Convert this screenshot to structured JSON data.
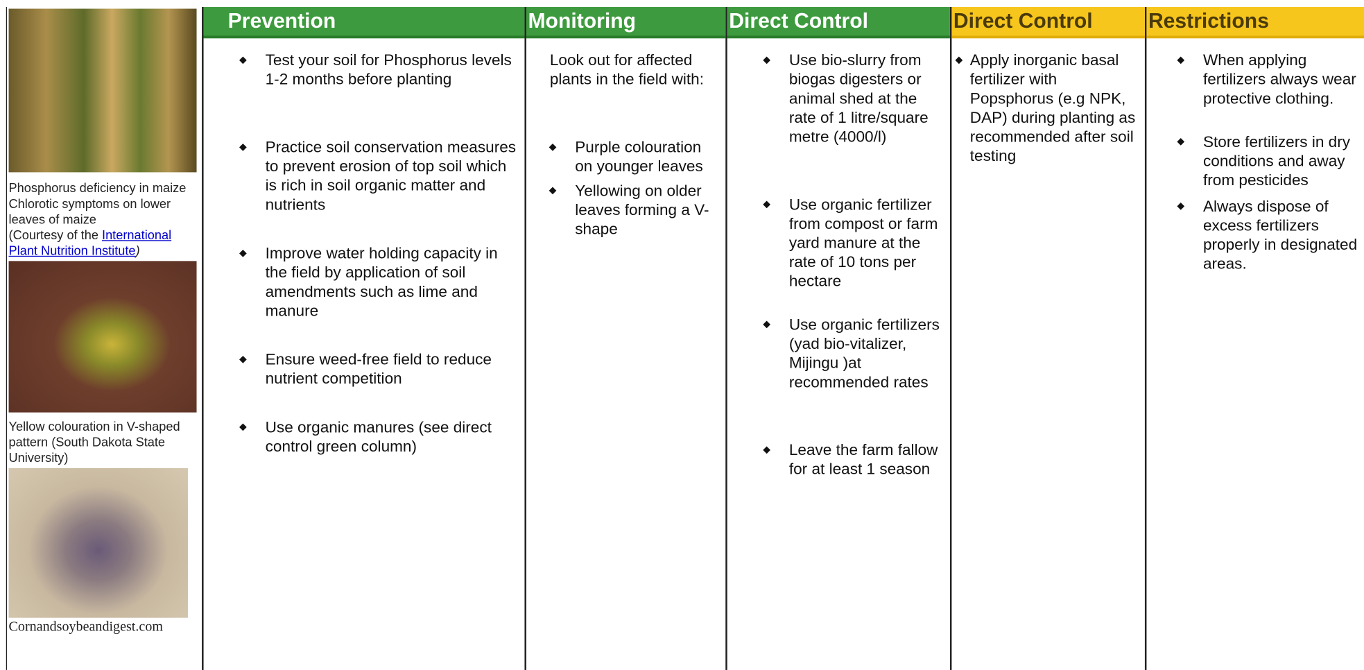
{
  "sidebar": {
    "captions": [
      [
        "Phosphorus deficiency in maize",
        "Chlorotic symptoms on lower",
        "leaves of maize"
      ],
      [
        "(Courtesy of the ",
        "International",
        "Plant Nutrition Institute",
        ")"
      ],
      "Yellow colouration in V-shaped pattern (South Dakota State University)",
      "Cornandsoybeandigest.com"
    ]
  },
  "columns": [
    {
      "header": "Prevention",
      "items": [
        "Test your soil for Phosphorus levels 1-2 months before planting",
        "Practice soil conservation measures to prevent erosion of top soil which is rich in soil organic matter and nutrients",
        "Improve water holding capacity in the field by application of soil amendments such as lime and manure",
        "Ensure weed-free field to reduce nutrient competition",
        "Use organic manures (see direct control green column)"
      ]
    },
    {
      "header": "Monitoring",
      "intro": "Look out for affected plants in the field with:",
      "items": [
        "Purple colouration on younger leaves",
        "Yellowing on older leaves forming a V-shape"
      ]
    },
    {
      "header": "Direct Control",
      "items": [
        "Use bio-slurry from biogas digesters or animal shed at the rate of 1 litre/square metre (4000/l)",
        "Use organic fertilizer from compost or farm yard manure at the rate of 10 tons per hectare",
        "Use  organic fertilizers (yad bio-vitalizer, Mijingu )at recommended rates",
        "Leave the farm fallow for at least 1 season"
      ]
    },
    {
      "header": "Direct Control",
      "items": [
        "Apply inorganic basal fertilizer with Popsphorus (e.g NPK, DAP) during planting as recommended after soil testing"
      ]
    },
    {
      "header": "Restrictions",
      "items": [
        "When applying fertilizers always wear protective clothing.",
        "Store fertilizers in dry conditions and away from pesticides",
        "Always dispose of excess fertilizers properly in designated areas."
      ]
    }
  ]
}
